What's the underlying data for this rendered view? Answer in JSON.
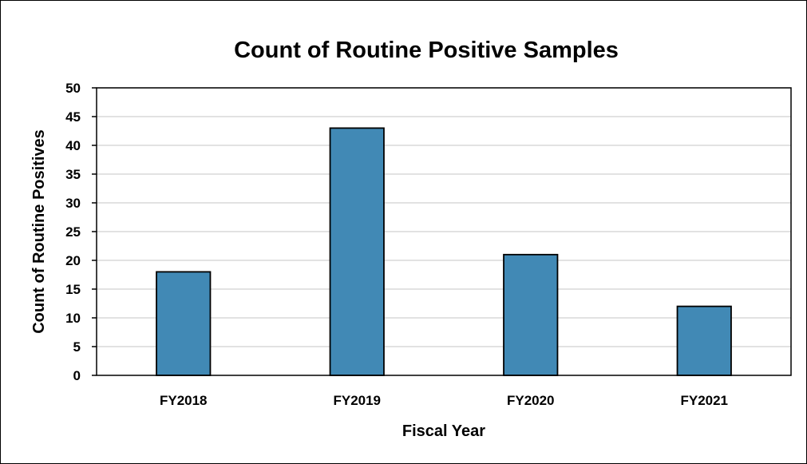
{
  "chart_data": {
    "type": "bar",
    "title": "Count of Routine Positive Samples",
    "xlabel": "Fiscal Year",
    "ylabel": "Count of Routine Positives",
    "categories": [
      "FY2018",
      "FY2019",
      "FY2020",
      "FY2021"
    ],
    "values": [
      18,
      43,
      21,
      12
    ],
    "ylim": [
      0,
      50
    ],
    "ytick_step": 5,
    "yticks": [
      "0",
      "5",
      "10",
      "15",
      "20",
      "25",
      "30",
      "35",
      "40",
      "45",
      "50"
    ],
    "grid": true,
    "legend": "none",
    "colors": {
      "bar_fill": "#4189b5",
      "bar_stroke": "#000000",
      "gridline": "#d9d9d9",
      "axis": "#000000"
    }
  }
}
